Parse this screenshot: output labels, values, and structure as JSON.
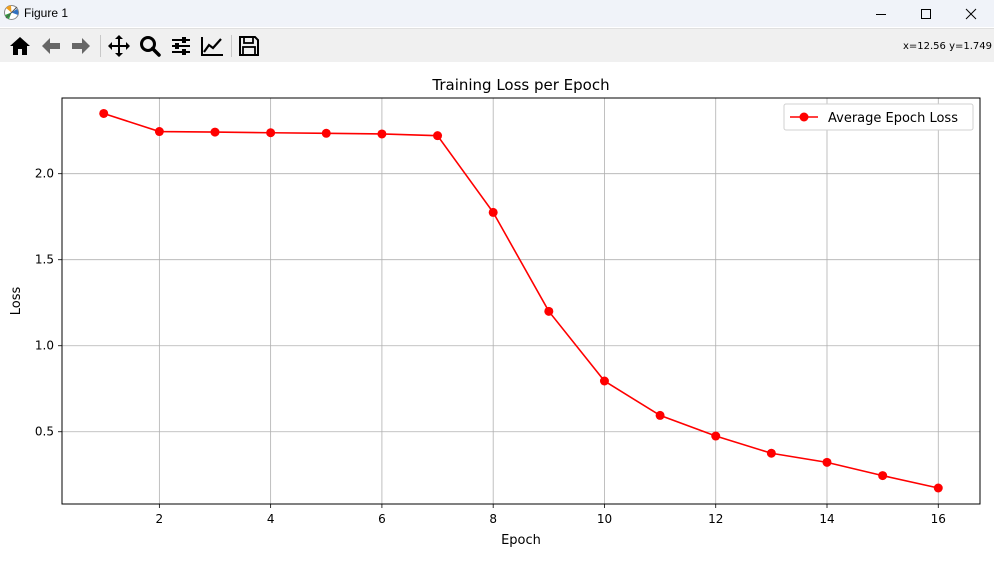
{
  "window": {
    "title": "Figure 1"
  },
  "toolbar": {
    "buttons": [
      {
        "name": "home-icon"
      },
      {
        "name": "back-arrow-icon"
      },
      {
        "name": "forward-arrow-icon"
      },
      {
        "name": "pan-icon"
      },
      {
        "name": "zoom-icon"
      },
      {
        "name": "configure-subplots-icon"
      },
      {
        "name": "edit-axis-icon"
      },
      {
        "name": "save-icon"
      }
    ],
    "coords": "x=12.56 y=1.749"
  },
  "colors": {
    "series": "#ff0000",
    "grid": "#b0b0b0",
    "titlebar": "#f0f3f9",
    "toolbar": "#f0f0f0"
  },
  "chart_data": {
    "type": "line",
    "title": "Training Loss per Epoch",
    "xlabel": "Epoch",
    "ylabel": "Loss",
    "x": [
      1,
      2,
      3,
      4,
      5,
      6,
      7,
      8,
      9,
      10,
      11,
      12,
      13,
      14,
      15,
      16
    ],
    "series": [
      {
        "name": "Average Epoch Loss",
        "color": "#ff0000",
        "marker": "circle",
        "values": [
          2.35,
          2.245,
          2.242,
          2.238,
          2.235,
          2.231,
          2.221,
          1.775,
          1.2,
          0.795,
          0.595,
          0.475,
          0.375,
          0.322,
          0.245,
          0.173
        ]
      }
    ],
    "xlim": [
      0.25,
      16.75
    ],
    "ylim": [
      0.08,
      2.44
    ],
    "xticks": [
      2,
      4,
      6,
      8,
      10,
      12,
      14,
      16
    ],
    "yticks": [
      0.5,
      1.0,
      1.5,
      2.0
    ],
    "ytick_labels": [
      "0.5",
      "1.0",
      "1.5",
      "2.0"
    ],
    "grid": true,
    "legend_position": "upper right"
  }
}
